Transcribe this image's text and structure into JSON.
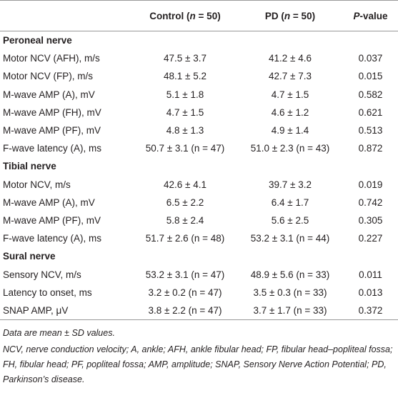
{
  "table": {
    "header": [
      [
        "Control (",
        "n",
        " = 50)"
      ],
      [
        "PD (",
        "n",
        " = 50)"
      ],
      [
        "P",
        "-value"
      ]
    ],
    "sections": [
      {
        "title": "Peroneal nerve",
        "rows": [
          [
            "Motor NCV (AFH), m/s",
            "47.5 ± 3.7",
            "41.2 ± 4.6",
            "0.037"
          ],
          [
            "Motor NCV (FP), m/s",
            "48.1 ± 5.2",
            "42.7 ± 7.3",
            "0.015"
          ],
          [
            "M-wave AMP (A), mV",
            "5.1 ± 1.8",
            "4.7 ± 1.5",
            "0.582"
          ],
          [
            "M-wave AMP (FH), mV",
            "4.7 ± 1.5",
            "4.6 ± 1.2",
            "0.621"
          ],
          [
            "M-wave AMP (PF), mV",
            "4.8 ± 1.3",
            "4.9 ± 1.4",
            "0.513"
          ],
          [
            "F-wave latency (A), ms",
            "50.7 ± 3.1 (n = 47)",
            "51.0 ± 2.3 (n = 43)",
            "0.872"
          ]
        ]
      },
      {
        "title": "Tibial nerve",
        "rows": [
          [
            "Motor NCV, m/s",
            "42.6 ± 4.1",
            "39.7 ± 3.2",
            "0.019"
          ],
          [
            "M-wave AMP (A), mV",
            "6.5 ± 2.2",
            "6.4 ± 1.7",
            "0.742"
          ],
          [
            "M-wave AMP (PF), mV",
            "5.8 ± 2.4",
            "5.6 ± 2.5",
            "0.305"
          ],
          [
            "F-wave latency (A), ms",
            "51.7 ± 2.6 (n = 48)",
            "53.2 ± 3.1 (n = 44)",
            "0.227"
          ]
        ]
      },
      {
        "title": "Sural nerve",
        "rows": [
          [
            "Sensory NCV, m/s",
            "53.2 ± 3.1 (n = 47)",
            "48.9 ± 5.6 (n = 33)",
            "0.011"
          ],
          [
            "Latency to onset, ms",
            "3.2 ± 0.2 (n = 47)",
            "3.5 ± 0.3 (n = 33)",
            "0.013"
          ],
          [
            "SNAP AMP, μV",
            "3.8 ± 2.2 (n = 47)",
            "3.7 ± 1.7 (n = 33)",
            "0.372"
          ]
        ]
      }
    ]
  },
  "notes": [
    "Data are mean ± SD values.",
    "NCV, nerve conduction velocity; A, ankle; AFH, ankle fibular head; FP, fibular head–popliteal fossa; FH, fibular head; PF, popliteal fossa; AMP, amplitude; SNAP, Sensory Nerve Action Potential; PD, Parkinson’s disease."
  ]
}
